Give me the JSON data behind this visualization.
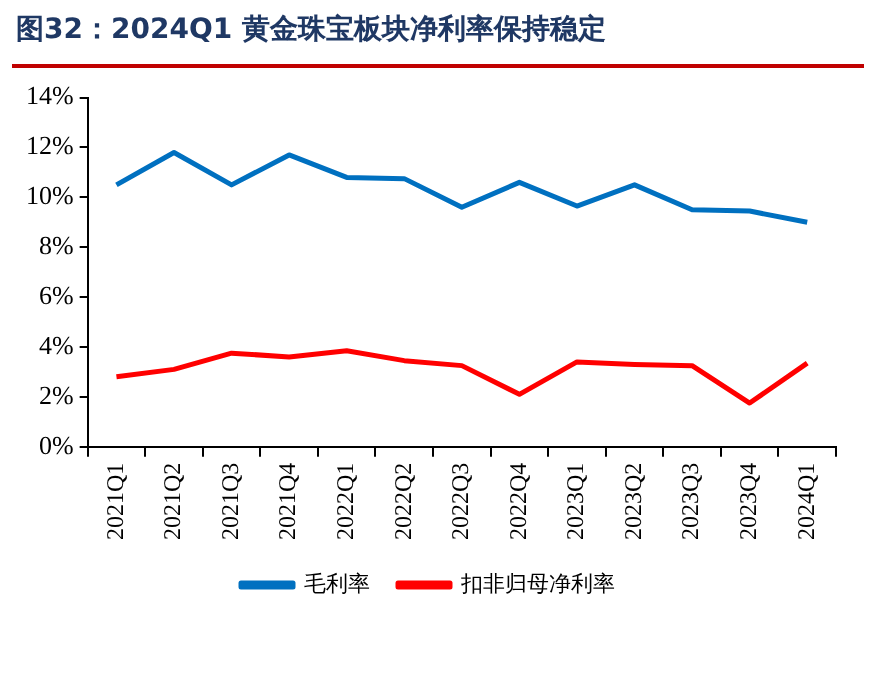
{
  "chart_data": {
    "type": "line",
    "title": "图32：2024Q1 黄金珠宝板块净利率保持稳定",
    "categories": [
      "2021Q1",
      "2021Q2",
      "2021Q3",
      "2021Q4",
      "2022Q1",
      "2022Q2",
      "2022Q3",
      "2022Q4",
      "2023Q1",
      "2023Q2",
      "2023Q3",
      "2023Q4",
      "2024Q1"
    ],
    "series": [
      {
        "name": "毛利率",
        "color": "#0070c0",
        "values": [
          10.5,
          11.8,
          10.5,
          11.7,
          10.8,
          10.75,
          9.6,
          10.6,
          9.65,
          10.5,
          9.5,
          9.45,
          9.0
        ]
      },
      {
        "name": "扣非归母净利率",
        "color": "#ff0000",
        "values": [
          2.8,
          3.1,
          3.75,
          3.6,
          3.85,
          3.45,
          3.25,
          2.1,
          3.4,
          3.3,
          3.25,
          1.75,
          3.35
        ]
      }
    ],
    "ylim": [
      0,
      14
    ],
    "yticks": [
      {
        "value": 0,
        "label": "0%"
      },
      {
        "value": 2,
        "label": "2%"
      },
      {
        "value": 4,
        "label": "4%"
      },
      {
        "value": 6,
        "label": "6%"
      },
      {
        "value": 8,
        "label": "8%"
      },
      {
        "value": 10,
        "label": "10%"
      },
      {
        "value": 12,
        "label": "12%"
      },
      {
        "value": 14,
        "label": "14%"
      }
    ],
    "grid": false,
    "legend": "bottom",
    "marker": "none",
    "line_style": "solid"
  }
}
